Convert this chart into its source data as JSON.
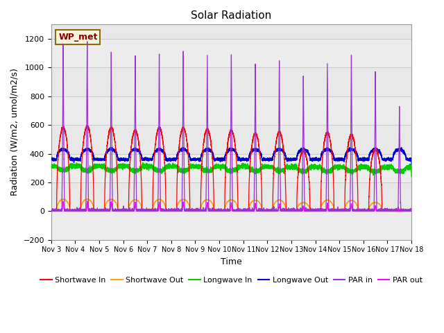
{
  "title": "Solar Radiation",
  "ylabel": "Radiation (W/m2, umol/m2/s)",
  "xlabel": "Time",
  "ylim": [
    -200,
    1300
  ],
  "xlim": [
    0,
    15
  ],
  "xtick_labels": [
    "Nov 3",
    "Nov 4",
    "Nov 5",
    "Nov 6",
    "Nov 7",
    "Nov 8",
    "Nov 9",
    "Nov 10",
    "Nov 11",
    "Nov 12",
    "Nov 13",
    "Nov 14",
    "Nov 15",
    "Nov 16",
    "Nov 17",
    "Nov 18"
  ],
  "xtick_positions": [
    0,
    1,
    2,
    3,
    4,
    5,
    6,
    7,
    8,
    9,
    10,
    11,
    12,
    13,
    14,
    15
  ],
  "ytick_positions": [
    -200,
    0,
    200,
    400,
    600,
    800,
    1000,
    1200
  ],
  "grid_color": "#cccccc",
  "bg_color": "#e8e8e8",
  "annotation_text": "WP_met",
  "annotation_color": "#8b0000",
  "annotation_bg": "#f5f5dc",
  "annotation_border": "#8b6914",
  "colors": {
    "shortwave_in": "#ff0000",
    "shortwave_out": "#ffa500",
    "longwave_in": "#00cc00",
    "longwave_out": "#0000cc",
    "par_in": "#9933cc",
    "par_out": "#ff00ff"
  },
  "legend": [
    {
      "label": "Shortwave In",
      "color": "#ff0000"
    },
    {
      "label": "Shortwave Out",
      "color": "#ffa500"
    },
    {
      "label": "Longwave In",
      "color": "#00cc00"
    },
    {
      "label": "Longwave Out",
      "color": "#0000cc"
    },
    {
      "label": "PAR in",
      "color": "#9933cc"
    },
    {
      "label": "PAR out",
      "color": "#ff00ff"
    }
  ],
  "par_in_peaks": [
    1170,
    1170,
    1130,
    1100,
    1120,
    1130,
    1110,
    1110,
    1050,
    1060,
    960,
    1040,
    1085,
    990,
    730
  ],
  "shortwave_in_peaks": [
    580,
    590,
    580,
    560,
    580,
    580,
    570,
    560,
    540,
    550,
    420,
    545,
    530,
    430,
    0
  ],
  "par_out_peaks": [
    65,
    70,
    65,
    60,
    65,
    65,
    60,
    60,
    55,
    50,
    35,
    55,
    50,
    40,
    10
  ],
  "longwave_in_base": 315,
  "longwave_out_base": 360,
  "days": 15
}
